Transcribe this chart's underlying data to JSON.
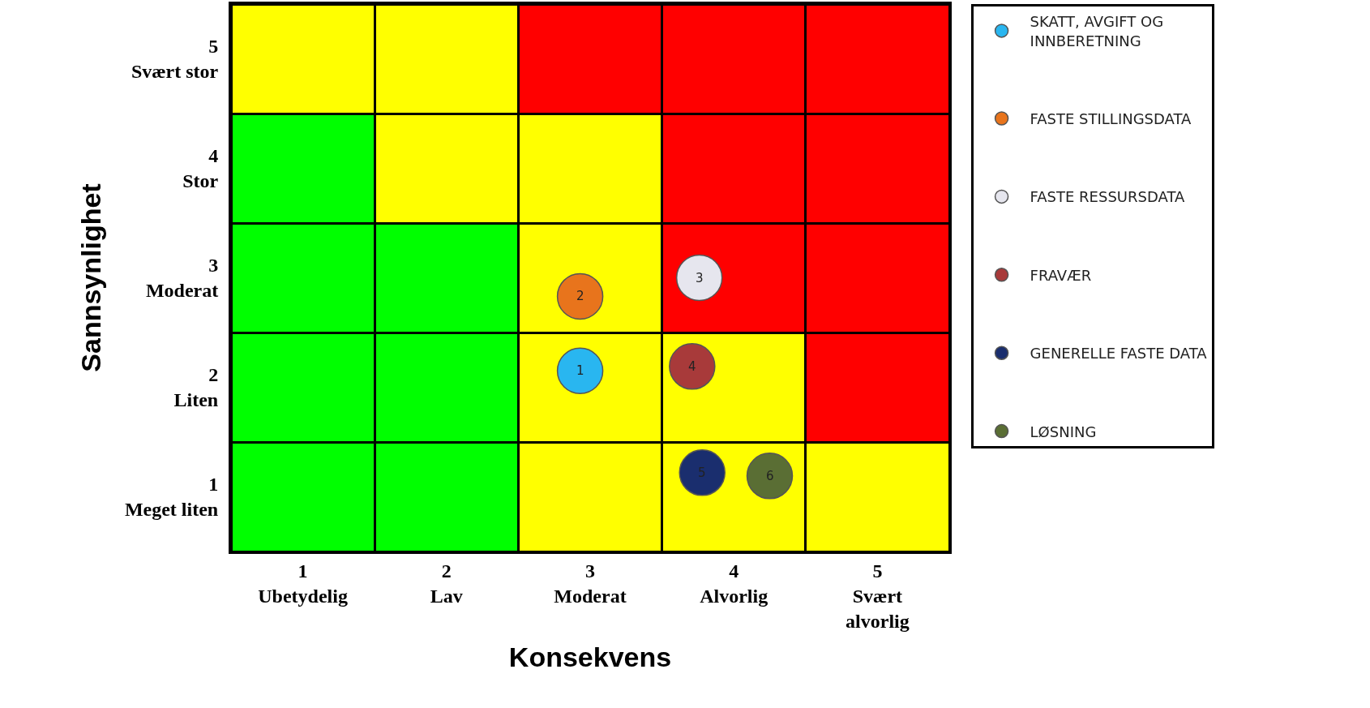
{
  "chart_data": {
    "type": "bar",
    "stacked": true,
    "xlabel": "Konsekvens",
    "ylabel": "Sannsynlighet",
    "x": [
      0.5,
      1.5,
      2.5,
      3.5,
      4.5
    ],
    "xlim": [
      0,
      5
    ],
    "ylim": [
      0,
      5
    ],
    "xticks": [
      {
        "value": 0.5,
        "label": "1\nUbetydelig"
      },
      {
        "value": 1.5,
        "label": "2\nLav"
      },
      {
        "value": 2.5,
        "label": "3\nModerat"
      },
      {
        "value": 3.5,
        "label": "4\nAlvorlig"
      },
      {
        "value": 4.5,
        "label": "5\nSvært\nalvorlig"
      }
    ],
    "yticks": [
      {
        "value": 0.5,
        "label": "1\nMeget liten"
      },
      {
        "value": 1.5,
        "label": "2\nLiten"
      },
      {
        "value": 2.5,
        "label": "3\nModerat"
      },
      {
        "value": 3.5,
        "label": "4\nStor"
      },
      {
        "value": 4.5,
        "label": "5\nSvært stor"
      }
    ],
    "legend": "right",
    "marker": "circle",
    "annotations": [
      {
        "text": "1",
        "x": 2.43,
        "y": 1.65
      },
      {
        "text": "2",
        "x": 2.43,
        "y": 2.33
      },
      {
        "text": "3",
        "x": 3.26,
        "y": 2.5
      },
      {
        "text": "4",
        "x": 3.21,
        "y": 1.69
      },
      {
        "text": "5",
        "x": 3.28,
        "y": 0.72
      },
      {
        "text": "6",
        "x": 3.75,
        "y": 0.69
      }
    ],
    "series": [
      {
        "values": [
          1,
          1,
          1,
          1,
          1
        ],
        "colors": [
          "#00ff00",
          "#00ff00",
          "#ffff00",
          "#ffff00",
          "#ffff00"
        ]
      },
      {
        "values": [
          1,
          1,
          1,
          1,
          1
        ],
        "colors": [
          "#00ff00",
          "#00ff00",
          "#ffff00",
          "#ffff00",
          "#ff0000"
        ]
      },
      {
        "values": [
          1,
          1,
          1,
          1,
          1
        ],
        "colors": [
          "#00ff00",
          "#00ff00",
          "#ffff00",
          "#ff0000",
          "#ff0000"
        ]
      },
      {
        "values": [
          1,
          1,
          1,
          1,
          1
        ],
        "colors": [
          "#00ff00",
          "#ffff00",
          "#ffff00",
          "#ff0000",
          "#ff0000"
        ]
      },
      {
        "values": [
          1,
          1,
          1,
          1,
          1
        ],
        "colors": [
          "#ffff00",
          "#ffff00",
          "#ff0000",
          "#ff0000",
          "#ff0000"
        ]
      },
      {
        "type": "scatter",
        "name": "SKATT, AVGIFT OG\nINNBERETNING",
        "color": "#29b6f0",
        "x": [
          2.43
        ],
        "values": [
          1.65
        ]
      },
      {
        "type": "scatter",
        "name": "FASTE STILLINGSDATA",
        "color": "#e8741c",
        "x": [
          2.43
        ],
        "values": [
          2.33
        ]
      },
      {
        "type": "scatter",
        "name": "FASTE RESSURSDATA",
        "color": "#e6e6ee",
        "x": [
          3.26
        ],
        "values": [
          2.5
        ]
      },
      {
        "type": "scatter",
        "name": "FRAVÆR",
        "color": "#a83a3a",
        "x": [
          3.21
        ],
        "values": [
          1.69
        ]
      },
      {
        "type": "scatter",
        "name": "GENERELLE FASTE DATA",
        "color": "#1a2e6e",
        "x": [
          3.28
        ],
        "values": [
          0.72
        ]
      },
      {
        "type": "scatter",
        "name": "LØSNING",
        "color": "#5a6e34",
        "x": [
          3.75
        ],
        "values": [
          0.69
        ]
      }
    ]
  }
}
